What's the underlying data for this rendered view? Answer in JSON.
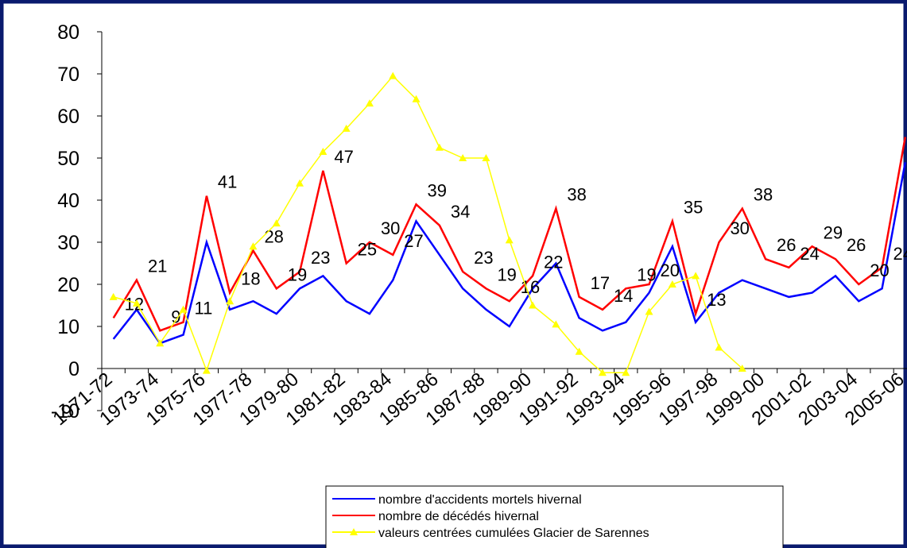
{
  "chart_data": {
    "type": "line",
    "categories": [
      "1971-72",
      null,
      "1973-74",
      null,
      "1975-76",
      null,
      "1977-78",
      null,
      "1979-80",
      null,
      "1981-82",
      null,
      "1983-84",
      null,
      "1985-86",
      null,
      "1987-88",
      null,
      "1989-90",
      null,
      "1991-92",
      null,
      "1993-94",
      null,
      "1995-96",
      null,
      "1997-98",
      null,
      "1999-00",
      null,
      "2001-02",
      null,
      "2003-04",
      null,
      "2005-06"
    ],
    "series": [
      {
        "name": "nombre d'accidents mortels hivernal",
        "color": "#0000ff",
        "values": [
          7,
          14,
          6,
          8,
          30,
          14,
          16,
          13,
          19,
          22,
          16,
          13,
          21,
          35,
          27,
          19,
          14,
          10,
          19,
          25,
          12,
          9,
          11,
          18,
          29,
          11,
          18,
          21,
          19,
          17,
          18,
          22,
          16,
          19,
          49
        ]
      },
      {
        "name": "nombre de décédés hivernal",
        "color": "#ff0000",
        "values": [
          12,
          21,
          9,
          11,
          41,
          18,
          28,
          19,
          23,
          47,
          25,
          30,
          27,
          39,
          34,
          23,
          19,
          16,
          22,
          38,
          17,
          14,
          19,
          20,
          35,
          13,
          30,
          38,
          26,
          24,
          29,
          26,
          20,
          24,
          55
        ],
        "data_labels": true
      },
      {
        "name": "valeurs centrées cumulées Glacier de Sarennes",
        "color": "#ffff00",
        "marker": "triangle",
        "values": [
          17,
          15.5,
          6,
          14,
          -0.5,
          16,
          29,
          34.5,
          44,
          51.5,
          57,
          63,
          69.5,
          64,
          52.5,
          50,
          50,
          30.5,
          15,
          10.5,
          4,
          -1,
          -1,
          13.5,
          20,
          22,
          5,
          0,
          null,
          null,
          null,
          null,
          null,
          null,
          null
        ]
      }
    ],
    "ylim": [
      -10,
      80
    ],
    "yticks": [
      -10,
      0,
      10,
      20,
      30,
      40,
      50,
      60,
      70,
      80
    ],
    "grid": false
  }
}
